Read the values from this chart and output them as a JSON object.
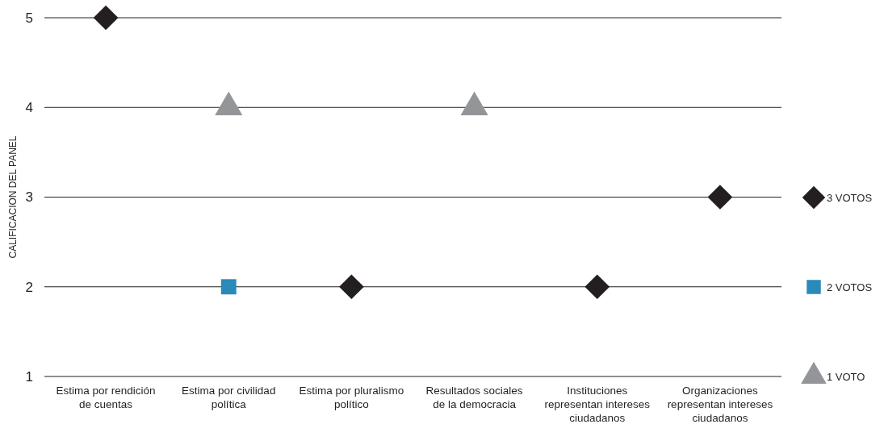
{
  "chart_data": {
    "type": "scatter",
    "ylabel": "CALIFICACION DEL PANEL",
    "categories": [
      "Estima por rendición de cuentas",
      "Estima por civilidad política",
      "Estima por pluralismo político",
      "Resultados sociales de la democracia",
      "Instituciones representan intereses ciudadanos",
      "Organizaciones representan intereses ciudadanos"
    ],
    "series": [
      {
        "name": "3 VOTOS",
        "color": "#231f20",
        "marker": "diamond",
        "values": [
          5,
          null,
          2,
          null,
          2,
          3
        ]
      },
      {
        "name": "2 VOTOS",
        "color": "#2a8ab9",
        "marker": "square",
        "values": [
          null,
          2,
          null,
          null,
          null,
          null
        ]
      },
      {
        "name": "1 VOTO",
        "color": "#939598",
        "marker": "triangle",
        "values": [
          null,
          4,
          null,
          4,
          null,
          null
        ]
      }
    ],
    "ylim": [
      1,
      5
    ],
    "yticks": [
      1,
      2,
      3,
      4,
      5
    ],
    "grid": "y",
    "legend": "right"
  }
}
